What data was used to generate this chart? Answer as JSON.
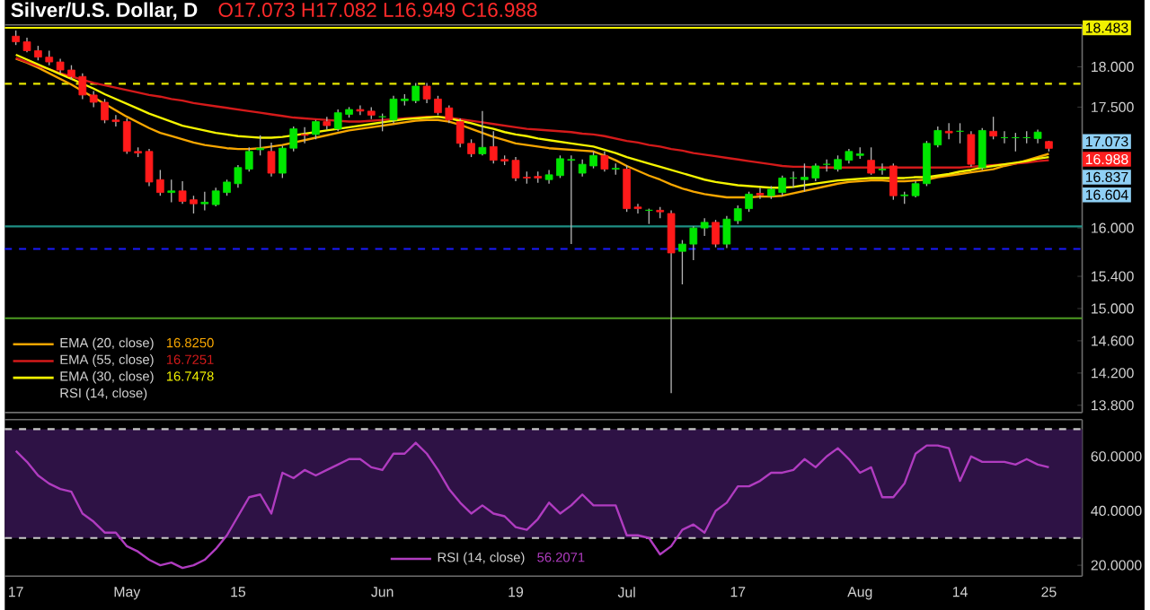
{
  "chart_data": [
    {
      "type": "candlestick",
      "title": "Silver/U.S. Dollar, D",
      "subtitle": "O17.073 H17.082 L16.949 C16.988",
      "categories": [
        null,
        null,
        null,
        null,
        null,
        null,
        null,
        null,
        null,
        null,
        null,
        null,
        null,
        null,
        null,
        null,
        null,
        null,
        null,
        null,
        null,
        null,
        null,
        null,
        null,
        null,
        null,
        null,
        null,
        null,
        null,
        null,
        null,
        null,
        null,
        null,
        null,
        null,
        null,
        null,
        null,
        null,
        null,
        null,
        null,
        null,
        null,
        null,
        null,
        null,
        null,
        null,
        null,
        null,
        null,
        null,
        null,
        null,
        null,
        null,
        null,
        null,
        null,
        null,
        null,
        null,
        null,
        null,
        null,
        null,
        null,
        null,
        null,
        null,
        null,
        null,
        null,
        null,
        null,
        null,
        null,
        null,
        null,
        null,
        null,
        null,
        null,
        null,
        null,
        null,
        null,
        null,
        null,
        null
      ],
      "ohlc": [
        [
          18.38,
          18.45,
          18.27,
          18.31
        ],
        [
          18.31,
          18.36,
          18.18,
          18.2
        ],
        [
          18.2,
          18.26,
          18.08,
          18.12
        ],
        [
          18.12,
          18.2,
          18.02,
          18.06
        ],
        [
          18.06,
          18.1,
          17.92,
          17.96
        ],
        [
          17.96,
          18.02,
          17.84,
          17.88
        ],
        [
          17.88,
          17.92,
          17.6,
          17.65
        ],
        [
          17.65,
          17.7,
          17.5,
          17.56
        ],
        [
          17.56,
          17.6,
          17.3,
          17.34
        ],
        [
          17.34,
          17.4,
          17.26,
          17.32
        ],
        [
          17.32,
          17.36,
          16.92,
          16.95
        ],
        [
          16.95,
          17.0,
          16.88,
          16.93
        ],
        [
          16.95,
          16.98,
          16.52,
          16.57
        ],
        [
          16.6,
          16.72,
          16.4,
          16.44
        ],
        [
          16.44,
          16.6,
          16.32,
          16.46
        ],
        [
          16.46,
          16.58,
          16.3,
          16.33
        ],
        [
          16.35,
          16.4,
          16.18,
          16.3
        ],
        [
          16.3,
          16.45,
          16.22,
          16.32
        ],
        [
          16.29,
          16.5,
          16.27,
          16.46
        ],
        [
          16.44,
          16.6,
          16.4,
          16.57
        ],
        [
          16.55,
          16.78,
          16.5,
          16.75
        ],
        [
          16.73,
          17.0,
          16.7,
          16.95
        ],
        [
          16.97,
          17.15,
          16.9,
          16.99
        ],
        [
          16.95,
          17.06,
          16.64,
          16.68
        ],
        [
          16.68,
          17.02,
          16.62,
          16.99
        ],
        [
          16.99,
          17.26,
          16.95,
          17.23
        ],
        [
          17.16,
          17.25,
          17.05,
          17.15
        ],
        [
          17.16,
          17.34,
          17.1,
          17.32
        ],
        [
          17.32,
          17.38,
          17.22,
          17.27
        ],
        [
          17.23,
          17.47,
          17.2,
          17.43
        ],
        [
          17.41,
          17.5,
          17.37,
          17.47
        ],
        [
          17.47,
          17.52,
          17.4,
          17.45
        ],
        [
          17.45,
          17.5,
          17.35,
          17.4
        ],
        [
          17.38,
          17.42,
          17.2,
          17.38
        ],
        [
          17.34,
          17.64,
          17.3,
          17.6
        ],
        [
          17.58,
          17.66,
          17.52,
          17.6
        ],
        [
          17.58,
          17.8,
          17.55,
          17.76
        ],
        [
          17.76,
          17.8,
          17.55,
          17.6
        ],
        [
          17.6,
          17.64,
          17.4,
          17.43
        ],
        [
          17.49,
          17.52,
          17.3,
          17.34
        ],
        [
          17.32,
          17.36,
          17.0,
          17.05
        ],
        [
          17.05,
          17.1,
          16.88,
          16.92
        ],
        [
          16.92,
          17.45,
          16.9,
          17.0
        ],
        [
          17.01,
          17.2,
          16.8,
          16.84
        ],
        [
          16.85,
          16.9,
          16.78,
          16.83
        ],
        [
          16.84,
          16.88,
          16.58,
          16.62
        ],
        [
          16.63,
          16.7,
          16.55,
          16.62
        ],
        [
          16.64,
          16.7,
          16.56,
          16.62
        ],
        [
          16.6,
          16.72,
          16.55,
          16.66
        ],
        [
          16.65,
          16.9,
          16.62,
          16.86
        ],
        [
          16.84,
          16.9,
          15.8,
          16.85
        ],
        [
          16.68,
          16.85,
          16.64,
          16.79
        ],
        [
          16.77,
          16.95,
          16.74,
          16.9
        ],
        [
          16.9,
          16.95,
          16.7,
          16.73
        ],
        [
          16.73,
          16.8,
          16.66,
          16.74
        ],
        [
          16.73,
          16.78,
          16.2,
          16.24
        ],
        [
          16.26,
          16.3,
          16.18,
          16.24
        ],
        [
          16.22,
          16.24,
          16.05,
          16.22
        ],
        [
          16.22,
          16.26,
          16.12,
          16.2
        ],
        [
          16.18,
          16.22,
          13.95,
          15.69
        ],
        [
          15.71,
          15.85,
          15.3,
          15.8
        ],
        [
          15.8,
          16.02,
          15.6,
          16.0
        ],
        [
          16.0,
          16.12,
          15.9,
          16.07
        ],
        [
          16.07,
          16.1,
          15.76,
          15.8
        ],
        [
          15.8,
          16.15,
          15.75,
          16.11
        ],
        [
          16.09,
          16.28,
          16.05,
          16.24
        ],
        [
          16.24,
          16.45,
          16.2,
          16.42
        ],
        [
          16.43,
          16.5,
          16.36,
          16.41
        ],
        [
          16.4,
          16.52,
          16.36,
          16.48
        ],
        [
          16.44,
          16.65,
          16.4,
          16.62
        ],
        [
          16.62,
          16.7,
          16.5,
          16.62
        ],
        [
          16.6,
          16.8,
          16.45,
          16.63
        ],
        [
          16.62,
          16.8,
          16.58,
          16.77
        ],
        [
          16.79,
          16.85,
          16.7,
          16.79
        ],
        [
          16.73,
          16.9,
          16.7,
          16.85
        ],
        [
          16.84,
          16.98,
          16.8,
          16.95
        ],
        [
          16.9,
          17.0,
          16.86,
          16.92
        ],
        [
          16.84,
          17.0,
          16.66,
          16.68
        ],
        [
          16.72,
          16.8,
          16.66,
          16.73
        ],
        [
          16.77,
          16.8,
          16.35,
          16.4
        ],
        [
          16.4,
          16.45,
          16.3,
          16.41
        ],
        [
          16.4,
          16.58,
          16.38,
          16.55
        ],
        [
          16.55,
          17.08,
          16.52,
          17.05
        ],
        [
          17.03,
          17.26,
          17.0,
          17.21
        ],
        [
          17.2,
          17.3,
          17.1,
          17.18
        ],
        [
          17.2,
          17.3,
          17.05,
          17.2
        ],
        [
          17.16,
          17.2,
          16.76,
          16.79
        ],
        [
          16.75,
          17.24,
          16.72,
          17.21
        ],
        [
          17.2,
          17.38,
          17.1,
          17.14
        ],
        [
          17.12,
          17.2,
          17.05,
          17.12
        ],
        [
          17.12,
          17.18,
          16.95,
          17.12
        ],
        [
          17.12,
          17.2,
          17.05,
          17.12
        ],
        [
          17.11,
          17.22,
          17.05,
          17.19
        ],
        [
          17.073,
          17.082,
          16.949,
          16.988
        ]
      ],
      "series": [
        {
          "name": "EMA (20, close)",
          "type": "line",
          "color": "#f7a600",
          "values": [
            18.1,
            18.05,
            17.99,
            17.92,
            17.85,
            17.78,
            17.7,
            17.62,
            17.54,
            17.46,
            17.38,
            17.31,
            17.24,
            17.18,
            17.14,
            17.1,
            17.06,
            17.03,
            17.01,
            16.99,
            16.98,
            16.98,
            16.99,
            17.01,
            17.03,
            17.06,
            17.09,
            17.12,
            17.15,
            17.18,
            17.21,
            17.23,
            17.25,
            17.27,
            17.29,
            17.31,
            17.33,
            17.34,
            17.34,
            17.32,
            17.28,
            17.23,
            17.18,
            17.13,
            17.09,
            17.05,
            17.03,
            17.01,
            16.99,
            16.98,
            16.97,
            16.96,
            16.95,
            16.9,
            16.84,
            16.77,
            16.71,
            16.65,
            16.6,
            16.54,
            16.49,
            16.45,
            16.42,
            16.4,
            16.38,
            16.38,
            16.38,
            16.39,
            16.39,
            16.4,
            16.43,
            16.46,
            16.49,
            16.52,
            16.55,
            16.57,
            16.58,
            16.59,
            16.59,
            16.58,
            16.58,
            16.59,
            16.6,
            16.63,
            16.65,
            16.67,
            16.69,
            16.71,
            16.73,
            16.77,
            16.8,
            16.84,
            16.88,
            16.92
          ]
        },
        {
          "name": "EMA (55, close)",
          "type": "line",
          "color": "#d41a1a",
          "values": [
            18.11,
            18.06,
            18.01,
            17.97,
            17.92,
            17.88,
            17.84,
            17.8,
            17.77,
            17.74,
            17.71,
            17.68,
            17.65,
            17.63,
            17.6,
            17.58,
            17.55,
            17.53,
            17.51,
            17.49,
            17.47,
            17.45,
            17.43,
            17.41,
            17.39,
            17.37,
            17.36,
            17.35,
            17.34,
            17.33,
            17.32,
            17.32,
            17.33,
            17.34,
            17.35,
            17.36,
            17.37,
            17.38,
            17.38,
            17.37,
            17.35,
            17.33,
            17.31,
            17.29,
            17.27,
            17.25,
            17.23,
            17.22,
            17.21,
            17.2,
            17.19,
            17.17,
            17.16,
            17.14,
            17.11,
            17.08,
            17.06,
            17.03,
            17.01,
            16.98,
            16.96,
            16.93,
            16.91,
            16.89,
            16.87,
            16.85,
            16.83,
            16.81,
            16.79,
            16.77,
            16.76,
            16.76,
            16.75,
            16.75,
            16.75,
            16.75,
            16.75,
            16.75,
            16.75,
            16.75,
            16.75,
            16.75,
            16.75,
            16.75,
            16.75,
            16.75,
            16.76,
            16.77,
            16.78,
            16.79,
            16.8,
            16.81,
            16.83,
            16.84
          ]
        },
        {
          "name": "EMA (30, close)",
          "type": "line",
          "color": "#f5f500",
          "values": [
            18.15,
            18.09,
            18.03,
            17.97,
            17.91,
            17.85,
            17.79,
            17.73,
            17.66,
            17.6,
            17.54,
            17.48,
            17.42,
            17.37,
            17.32,
            17.27,
            17.24,
            17.21,
            17.18,
            17.16,
            17.14,
            17.13,
            17.12,
            17.12,
            17.13,
            17.15,
            17.17,
            17.19,
            17.21,
            17.23,
            17.25,
            17.27,
            17.29,
            17.31,
            17.33,
            17.35,
            17.36,
            17.37,
            17.38,
            17.36,
            17.33,
            17.3,
            17.26,
            17.23,
            17.19,
            17.16,
            17.14,
            17.11,
            17.09,
            17.07,
            17.05,
            17.03,
            17.01,
            16.97,
            16.93,
            16.88,
            16.84,
            16.8,
            16.76,
            16.72,
            16.68,
            16.64,
            16.6,
            16.57,
            16.55,
            16.53,
            16.52,
            16.51,
            16.5,
            16.5,
            16.51,
            16.53,
            16.55,
            16.57,
            16.59,
            16.6,
            16.61,
            16.62,
            16.62,
            16.62,
            16.62,
            16.63,
            16.63,
            16.65,
            16.67,
            16.7,
            16.72,
            16.75,
            16.77,
            16.79,
            16.81,
            16.83,
            16.86,
            16.88
          ]
        }
      ],
      "annotations": [
        "16.8250",
        "16.7251",
        "16.7478",
        "RSI (14, close)",
        "17.073",
        "16.988",
        "16.837",
        "16.604"
      ],
      "ref_lines": [
        {
          "axis": "y",
          "value": 18.483,
          "label": "18.483",
          "color": "#f0f000",
          "line_style": "solid"
        },
        {
          "axis": "y",
          "value": 17.79,
          "color": "#e6e600",
          "line_style": "dashed"
        },
        {
          "axis": "y",
          "value": 16.02,
          "color": "#1f8f84",
          "line_style": "solid"
        },
        {
          "axis": "y",
          "value": 15.74,
          "color": "#1a1aff",
          "line_style": "dashed"
        },
        {
          "axis": "y",
          "value": 14.88,
          "color": "#4c9a22",
          "line_style": "solid"
        }
      ],
      "ylim": [
        13.71,
        18.52
      ],
      "yticks": [
        {
          "value": 18,
          "label": "18.000"
        },
        {
          "value": 17.5,
          "label": "17.500"
        },
        {
          "value": 16,
          "label": "16.000"
        },
        {
          "value": 15.4,
          "label": "15.400"
        },
        {
          "value": 15,
          "label": "15.000"
        },
        {
          "value": 14.6,
          "label": "14.600"
        },
        {
          "value": 14.2,
          "label": "14.200"
        },
        {
          "value": 13.8,
          "label": "13.800"
        }
      ],
      "tick_labels": "y",
      "legend": "bottom left"
    },
    {
      "type": "line",
      "categories": [
        "17",
        null,
        null,
        null,
        null,
        null,
        null,
        null,
        null,
        null,
        "May",
        null,
        null,
        null,
        null,
        null,
        null,
        null,
        null,
        null,
        "15",
        null,
        null,
        null,
        null,
        null,
        null,
        null,
        null,
        null,
        null,
        null,
        null,
        "Jun",
        null,
        null,
        null,
        null,
        null,
        null,
        null,
        null,
        null,
        null,
        null,
        "19",
        null,
        null,
        null,
        null,
        null,
        null,
        null,
        null,
        null,
        "Jul",
        null,
        null,
        null,
        null,
        null,
        null,
        null,
        null,
        null,
        "17",
        null,
        null,
        null,
        null,
        null,
        null,
        null,
        null,
        null,
        null,
        "Aug",
        null,
        null,
        null,
        null,
        null,
        null,
        null,
        null,
        "14",
        null,
        null,
        null,
        null,
        null,
        null,
        null,
        "25"
      ],
      "series": [
        {
          "name": "RSI (14, close)",
          "color": "#b03cc0",
          "values": [
            62,
            58,
            53,
            50,
            48,
            47,
            39,
            36,
            32,
            32,
            27,
            25,
            22,
            20,
            21,
            19,
            20,
            22,
            26,
            31,
            38,
            45,
            46,
            39,
            54,
            52,
            55,
            53,
            55,
            57,
            59,
            59,
            56,
            55,
            61,
            61,
            65,
            61,
            55,
            48,
            43,
            39,
            42,
            39,
            38,
            34,
            33,
            37,
            43,
            39,
            42,
            46,
            42,
            42,
            42,
            31,
            31,
            30,
            24,
            27,
            33,
            35,
            32,
            40,
            43,
            49,
            49,
            51,
            54,
            54,
            55,
            59,
            56,
            60,
            63,
            59,
            54,
            56,
            45,
            45,
            50,
            61,
            64,
            64,
            63,
            51,
            60,
            58,
            58,
            58,
            57,
            59,
            57,
            56
          ]
        }
      ],
      "annotations": [
        "56.2071"
      ],
      "bands": [
        {
          "axis": "y",
          "from": 30,
          "to": 70,
          "color": "#2e1245"
        }
      ],
      "ref_lines": [
        {
          "axis": "y",
          "value": 70,
          "color": "#c8c8c8",
          "line_style": "dashed"
        },
        {
          "axis": "y",
          "value": 30,
          "color": "#c8c8c8",
          "line_style": "dashed"
        }
      ],
      "ylim": [
        16,
        73.5
      ],
      "yticks": [
        {
          "value": 20,
          "label": "20.0000"
        },
        {
          "value": 40,
          "label": "40.0000"
        },
        {
          "value": 60,
          "label": "60.0000"
        }
      ],
      "legend": "bottom"
    }
  ]
}
